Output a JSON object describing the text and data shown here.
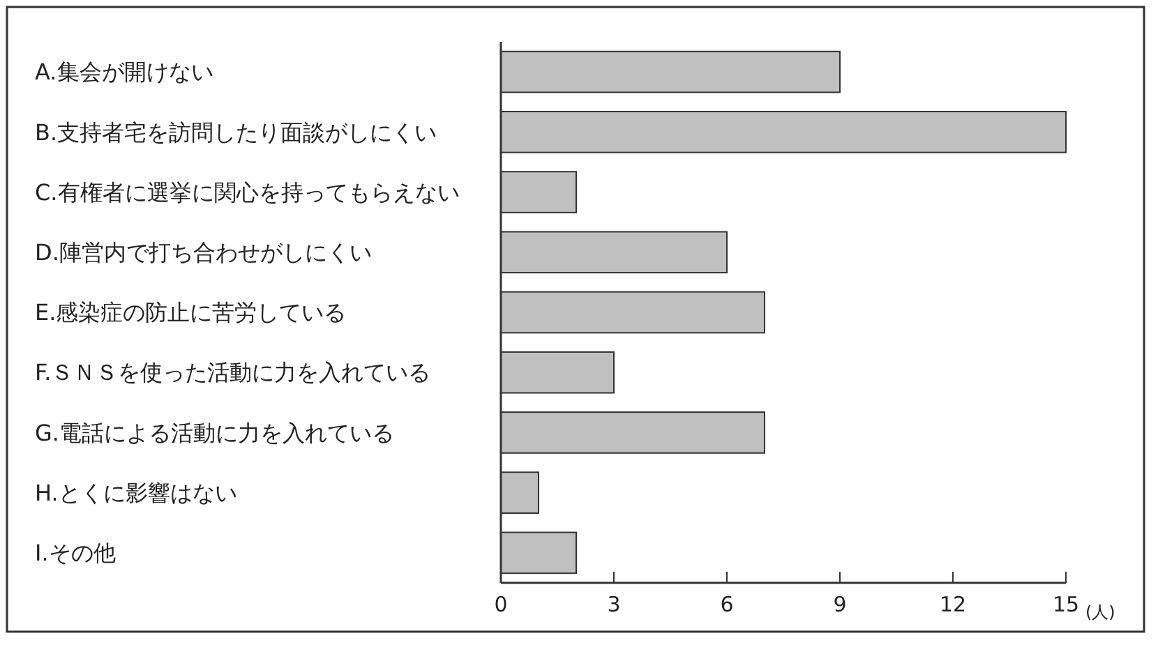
{
  "chart_data": {
    "type": "bar",
    "orientation": "horizontal",
    "xlabel": "(人)",
    "categories": [
      "A.集会が開けない",
      "B.支持者宅を訪問したり面談がしにくい",
      "C.有権者に選挙に関心を持ってもらえない",
      "D.陣営内で打ち合わせがしにくい",
      "E.感染症の防止に苦労している",
      "F.ＳＮＳを使った活動に力を入れている",
      "G.電話による活動に力を入れている",
      "H.とくに影響はない",
      "I.その他"
    ],
    "values": [
      9,
      15,
      2,
      6,
      7,
      3,
      7,
      1,
      2
    ],
    "color": "#c0c0c0",
    "xlim": [
      0,
      15
    ],
    "xticks": [
      0,
      3,
      6,
      9,
      12,
      15
    ]
  }
}
